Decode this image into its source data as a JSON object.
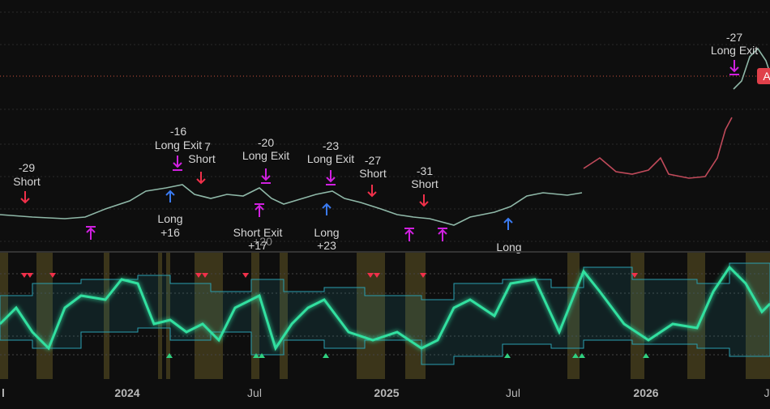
{
  "signals": [
    {
      "pnl": "-29",
      "label": "Short"
    },
    {
      "label": "Long",
      "pnl": "+16"
    },
    {
      "pnl": "-16",
      "label": "Long Exit"
    },
    {
      "pnl": "7",
      "label": "Short"
    },
    {
      "pnl": "-20",
      "label": "Long Exit"
    },
    {
      "label": "Short Exit",
      "pnl": "+17",
      "pnl_hidden": "+20"
    },
    {
      "pnl": "-23",
      "label": "Long Exit"
    },
    {
      "label": "Long",
      "pnl": "+23"
    },
    {
      "pnl": "-27",
      "label": "Short"
    },
    {
      "pnl": "-31",
      "label": "Short"
    },
    {
      "label": "Long"
    },
    {
      "pnl": "-27",
      "label": "Long Exit"
    }
  ],
  "price_tag": "A",
  "x_axis_labels": [
    "l",
    "2024",
    "Jul",
    "2025",
    "Jul",
    "2026",
    "J"
  ]
}
